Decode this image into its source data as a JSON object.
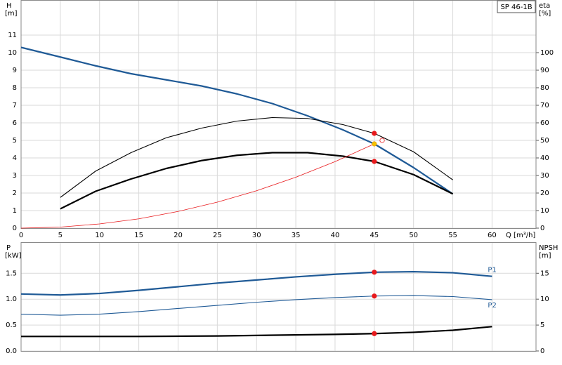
{
  "chart_data": [
    {
      "type": "line",
      "legend_label": "SP 46-1B",
      "xlabel": "Q [m³/h]",
      "ylabel": "H",
      "yunit": "[m]",
      "y2label": "eta",
      "y2unit": "[%]",
      "xlim": [
        0,
        65.6
      ],
      "xticks": [
        0,
        5,
        10,
        15,
        20,
        25,
        30,
        35,
        40,
        45,
        50,
        55,
        60
      ],
      "ylim": [
        0,
        13
      ],
      "yticks": [
        0,
        1,
        2,
        3,
        4,
        5,
        6,
        7,
        8,
        9,
        10,
        11
      ],
      "y2lim": [
        0,
        130
      ],
      "y2ticks": [
        0,
        10,
        20,
        30,
        40,
        50,
        60,
        70,
        80,
        90,
        100
      ],
      "grid": true,
      "xtick_labels": true,
      "series": [
        {
          "color": "#1f5a96",
          "style": "thick",
          "x": [
            0,
            5,
            9.5,
            14,
            18.5,
            23,
            27.5,
            32,
            36.5,
            41,
            45,
            50,
            55
          ],
          "values": [
            10.3,
            9.75,
            9.25,
            8.8,
            8.45,
            8.1,
            7.65,
            7.1,
            6.4,
            5.6,
            4.8,
            3.45,
            1.95
          ]
        },
        {
          "color": "#000000",
          "style": "thin",
          "axis": "y2",
          "x": [
            5,
            9.5,
            14,
            18.5,
            23,
            27.5,
            32,
            36.5,
            41,
            45,
            50,
            55
          ],
          "values": [
            17.5,
            32.5,
            43,
            51.5,
            57,
            61,
            63,
            62.5,
            59,
            54,
            43.5,
            27.5
          ]
        },
        {
          "color": "#000000",
          "style": "thick",
          "axis": "y2",
          "x": [
            5,
            9.5,
            14,
            18.5,
            23,
            27.5,
            32,
            36.5,
            41,
            45,
            50,
            55
          ],
          "values": [
            11,
            21,
            28,
            34,
            38.5,
            41.5,
            43,
            43,
            41,
            38,
            30.5,
            19.5
          ]
        },
        {
          "color": "#e8191c",
          "style": "hair",
          "x": [
            0,
            5,
            10,
            15,
            20,
            25,
            30,
            35,
            40,
            45
          ],
          "values": [
            0,
            0.06,
            0.24,
            0.53,
            0.95,
            1.48,
            2.13,
            2.9,
            3.79,
            4.8
          ]
        }
      ],
      "points": [
        {
          "x": 45,
          "y": 54,
          "axis": "y2",
          "color": "#e8191c",
          "fill": "#e8191c"
        },
        {
          "x": 45,
          "y": 38,
          "axis": "y2",
          "color": "#e8191c",
          "fill": "#e8191c"
        },
        {
          "x": 45,
          "y": 4.8,
          "color": "#e8a000",
          "fill": "#f5c400"
        },
        {
          "x": 46,
          "y": 5.0,
          "color": "#e8191c",
          "fill": "none"
        }
      ]
    },
    {
      "type": "line",
      "ylabel": "P",
      "yunit": "[kW]",
      "y2label": "NPSH",
      "y2unit": "[m]",
      "xlim": [
        0,
        65.6
      ],
      "xticks": [
        0,
        5,
        10,
        15,
        20,
        25,
        30,
        35,
        40,
        45,
        50,
        55,
        60
      ],
      "ylim": [
        0,
        2.1
      ],
      "yticks": [
        {
          "value": 0,
          "label": "0.0"
        },
        0.5,
        {
          "value": 1,
          "label": "1.0"
        },
        1.5
      ],
      "y2lim": [
        0,
        21
      ],
      "y2ticks": [
        0,
        5,
        10,
        15
      ],
      "grid": true,
      "xtick_labels": false,
      "series": [
        {
          "name": "P1",
          "color": "#1f5a96",
          "style": "thick",
          "x": [
            0,
            5,
            10,
            15,
            20,
            25,
            30,
            35,
            40,
            45,
            50,
            55,
            60
          ],
          "values": [
            1.1,
            1.08,
            1.11,
            1.17,
            1.24,
            1.31,
            1.37,
            1.43,
            1.48,
            1.52,
            1.53,
            1.51,
            1.44
          ]
        },
        {
          "name": "P2",
          "color": "#1f5a96",
          "style": "thin",
          "x": [
            0,
            5,
            10,
            15,
            20,
            25,
            30,
            35,
            40,
            45,
            50,
            55,
            60
          ],
          "values": [
            0.71,
            0.69,
            0.71,
            0.76,
            0.82,
            0.88,
            0.94,
            0.99,
            1.03,
            1.06,
            1.07,
            1.05,
            0.99
          ]
        },
        {
          "color": "#000000",
          "style": "thick",
          "axis": "y2",
          "x": [
            0,
            5,
            10,
            15,
            20,
            25,
            30,
            35,
            40,
            45,
            50,
            55,
            60
          ],
          "values": [
            2.8,
            2.8,
            2.8,
            2.8,
            2.85,
            2.9,
            3.0,
            3.1,
            3.2,
            3.35,
            3.6,
            4.0,
            4.7
          ]
        }
      ],
      "points": [
        {
          "x": 45,
          "y": 1.52,
          "color": "#e8191c",
          "fill": "#e8191c"
        },
        {
          "x": 45,
          "y": 1.06,
          "color": "#e8191c",
          "fill": "#e8191c"
        },
        {
          "x": 45,
          "y": 3.35,
          "axis": "y2",
          "color": "#e8191c",
          "fill": "#e8191c"
        }
      ]
    }
  ]
}
